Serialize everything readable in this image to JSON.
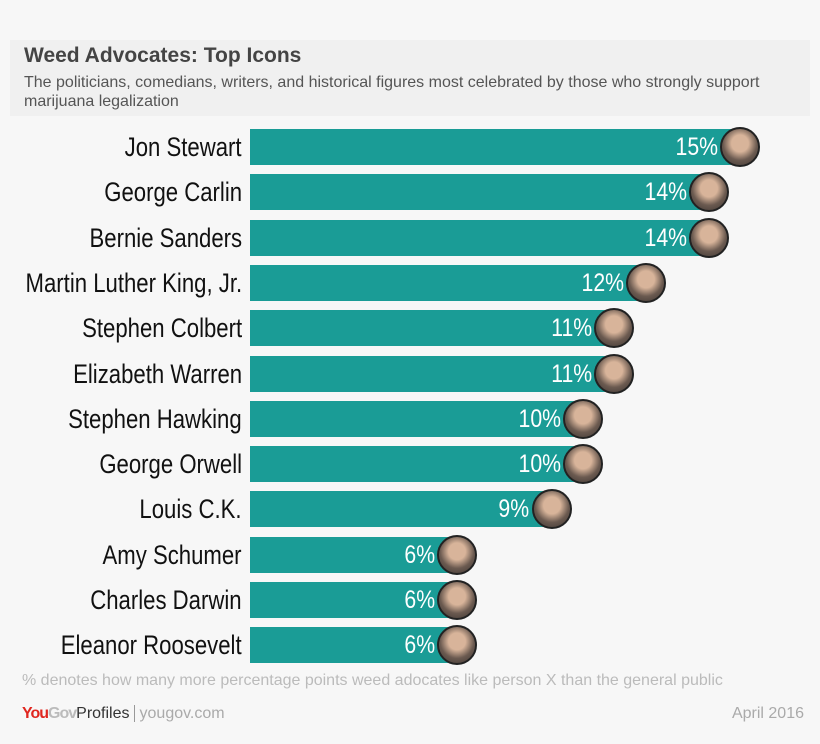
{
  "chart_data": {
    "type": "bar",
    "orientation": "horizontal",
    "title": "Weed Advocates: Top Icons",
    "subtitle": "The politicians, comedians, writers, and historical figures most celebrated by those who strongly support marijuana legalization",
    "categories": [
      "Jon Stewart",
      "George Carlin",
      "Bernie Sanders",
      "Martin Luther King, Jr.",
      "Stephen Colbert",
      "Elizabeth Warren",
      "Stephen Hawking",
      "George Orwell",
      "Louis C.K.",
      "Amy Schumer",
      "Charles Darwin",
      "Eleanor Roosevelt"
    ],
    "values": [
      15,
      14,
      14,
      12,
      11,
      11,
      10,
      10,
      9,
      6,
      6,
      6
    ],
    "value_labels": [
      "15%",
      "14%",
      "14%",
      "12%",
      "11%",
      "11%",
      "10%",
      "10%",
      "9%",
      "6%",
      "6%",
      "6%"
    ],
    "unit": "%",
    "bar_color": "#1a9c96",
    "xlim": [
      0,
      15
    ],
    "grid": false,
    "note": "% denotes how many more percentage points weed adocates like person X than the general public"
  },
  "footer": {
    "brand_you": "You",
    "brand_gov": "Gov",
    "brand_profiles": "Profiles",
    "site": "yougov.com",
    "date": "April 2016"
  }
}
